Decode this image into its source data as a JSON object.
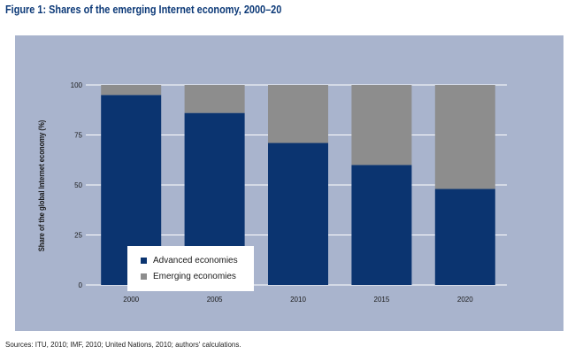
{
  "figure": {
    "title": "Figure 1: Shares of the emerging Internet economy, 2000–20",
    "source": "Sources: ITU, 2010; IMF, 2010; United Nations, 2010; authors' calculations."
  },
  "colors": {
    "advanced": "#0b3470",
    "emerging": "#8d8d8d",
    "panel": "#a9b4cd",
    "title": "#0d3a78"
  },
  "chart_data": {
    "type": "bar",
    "stacked": true,
    "title": "Figure 1: Shares of the emerging Internet economy, 2000–20",
    "xlabel": "",
    "ylabel": "Share of the global Internet economy (%)",
    "categories": [
      "2000",
      "2005",
      "2010",
      "2015",
      "2020"
    ],
    "series": [
      {
        "name": "Advanced economies",
        "values": [
          95,
          86,
          71,
          60,
          48
        ]
      },
      {
        "name": "Emerging economies",
        "values": [
          5,
          14,
          29,
          40,
          52
        ]
      }
    ],
    "ylim": [
      0,
      100
    ],
    "yticks": [
      0,
      25,
      50,
      75,
      100
    ],
    "grid": true,
    "legend": "bottom-left"
  }
}
